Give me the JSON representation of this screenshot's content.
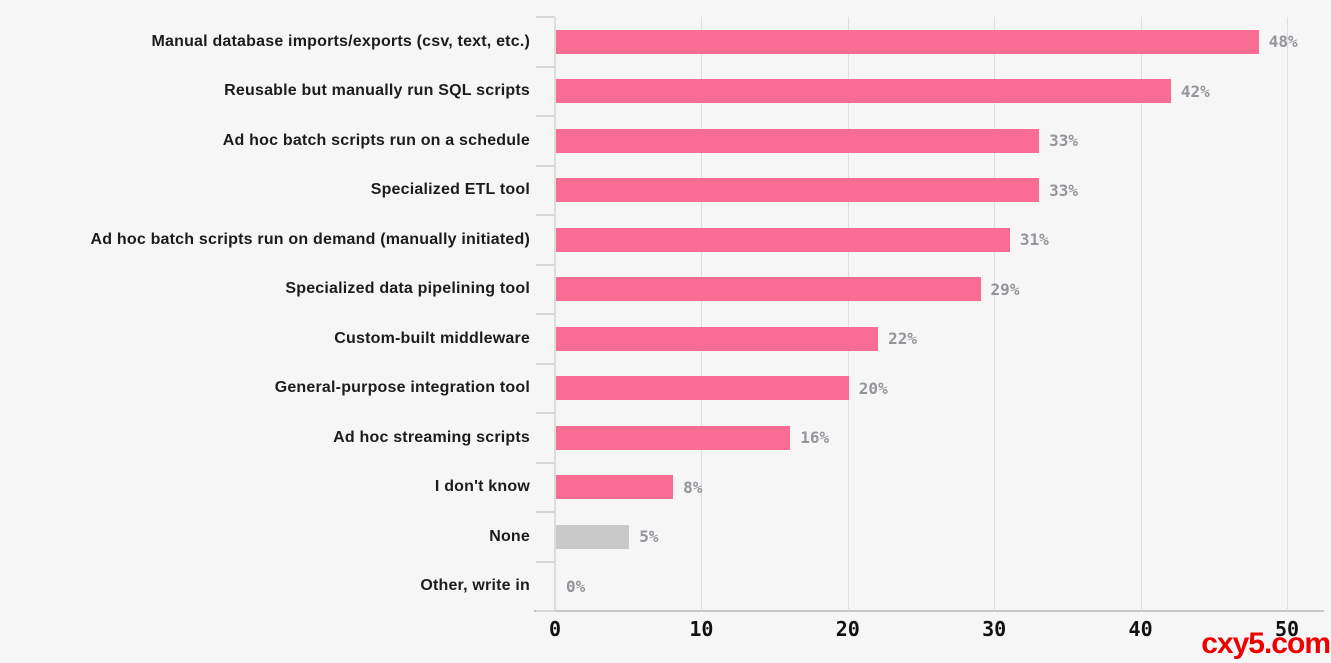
{
  "watermark": {
    "text": "cxy5.com"
  },
  "chart_data": {
    "type": "bar",
    "orientation": "horizontal",
    "title": "",
    "xlabel": "",
    "ylabel": "",
    "xlim": [
      0,
      50
    ],
    "xticks": [
      0,
      10,
      20,
      30,
      40,
      50
    ],
    "grid": "vertical",
    "legend": "none",
    "bars": [
      {
        "category": "Manual database imports/exports (csv, text, etc.)",
        "value": 48,
        "label": "48%",
        "color": "#f96d94"
      },
      {
        "category": "Reusable but manually run SQL scripts",
        "value": 42,
        "label": "42%",
        "color": "#f96d94"
      },
      {
        "category": "Ad hoc batch scripts run on a schedule",
        "value": 33,
        "label": "33%",
        "color": "#f96d94"
      },
      {
        "category": "Specialized ETL tool",
        "value": 33,
        "label": "33%",
        "color": "#f96d94"
      },
      {
        "category": "Ad hoc batch scripts run on demand (manually initiated)",
        "value": 31,
        "label": "31%",
        "color": "#f96d94"
      },
      {
        "category": "Specialized data pipelining tool",
        "value": 29,
        "label": "29%",
        "color": "#f96d94"
      },
      {
        "category": "Custom-built middleware",
        "value": 22,
        "label": "22%",
        "color": "#f96d94"
      },
      {
        "category": "General-purpose integration tool",
        "value": 20,
        "label": "20%",
        "color": "#f96d94"
      },
      {
        "category": "Ad hoc streaming scripts",
        "value": 16,
        "label": "16%",
        "color": "#f96d94"
      },
      {
        "category": "I don't know",
        "value": 8,
        "label": "8%",
        "color": "#f96d94"
      },
      {
        "category": "None",
        "value": 5,
        "label": "5%",
        "color": "#c9c9c9"
      },
      {
        "category": "Other, write in",
        "value": 0,
        "label": "0%",
        "color": "#f96d94"
      }
    ],
    "colors": {
      "bar_primary": "#f96d94",
      "bar_muted": "#c9c9c9",
      "value_label": "#94949a",
      "axis_label": "#111111",
      "category_label": "#1c1c1e",
      "gridline": "#dedede",
      "axis_line": "#c7c7c7",
      "background": "#f6f6f7",
      "watermark": "#ee0000"
    }
  }
}
